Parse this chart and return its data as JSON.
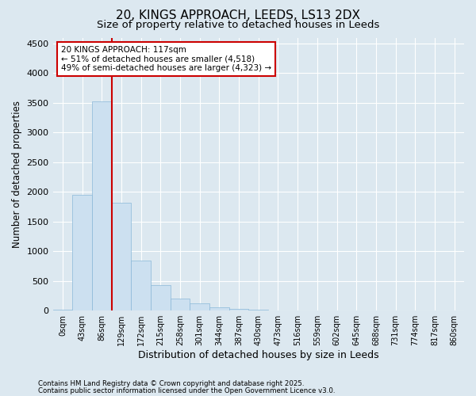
{
  "title1": "20, KINGS APPROACH, LEEDS, LS13 2DX",
  "title2": "Size of property relative to detached houses in Leeds",
  "xlabel": "Distribution of detached houses by size in Leeds",
  "ylabel": "Number of detached properties",
  "categories": [
    "0sqm",
    "43sqm",
    "86sqm",
    "129sqm",
    "172sqm",
    "215sqm",
    "258sqm",
    "301sqm",
    "344sqm",
    "387sqm",
    "430sqm",
    "473sqm",
    "516sqm",
    "559sqm",
    "602sqm",
    "645sqm",
    "688sqm",
    "731sqm",
    "774sqm",
    "817sqm",
    "860sqm"
  ],
  "bar_heights": [
    10,
    1950,
    3520,
    1820,
    840,
    430,
    200,
    120,
    60,
    30,
    10,
    0,
    0,
    0,
    0,
    0,
    0,
    0,
    0,
    0,
    0
  ],
  "bar_color": "#cce0f0",
  "bar_edge_color": "#8ab8d8",
  "vline_color": "#cc0000",
  "annotation_text": "20 KINGS APPROACH: 117sqm\n← 51% of detached houses are smaller (4,518)\n49% of semi-detached houses are larger (4,323) →",
  "annotation_box_color": "#cc0000",
  "ylim": [
    0,
    4600
  ],
  "yticks": [
    0,
    500,
    1000,
    1500,
    2000,
    2500,
    3000,
    3500,
    4000,
    4500
  ],
  "footnote1": "Contains HM Land Registry data © Crown copyright and database right 2025.",
  "footnote2": "Contains public sector information licensed under the Open Government Licence v3.0.",
  "background_color": "#dce8f0",
  "plot_background": "#dce8f0",
  "title1_fontsize": 11,
  "title2_fontsize": 9.5
}
